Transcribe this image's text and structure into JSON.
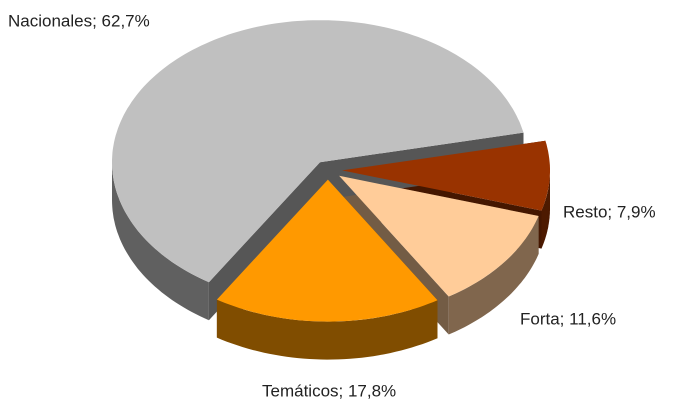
{
  "chart_data": {
    "type": "pie3d",
    "values": [
      7.9,
      11.6,
      17.8,
      62.7
    ],
    "value_labels": [
      "Resto; 7,9%",
      "Forta; 11,6%",
      "Temáticos; 17,8%",
      "Nacionales; 62,7%"
    ],
    "colors": [
      "#993300",
      "#ffcc99",
      "#ff9900",
      "#c0c0c0"
    ]
  }
}
